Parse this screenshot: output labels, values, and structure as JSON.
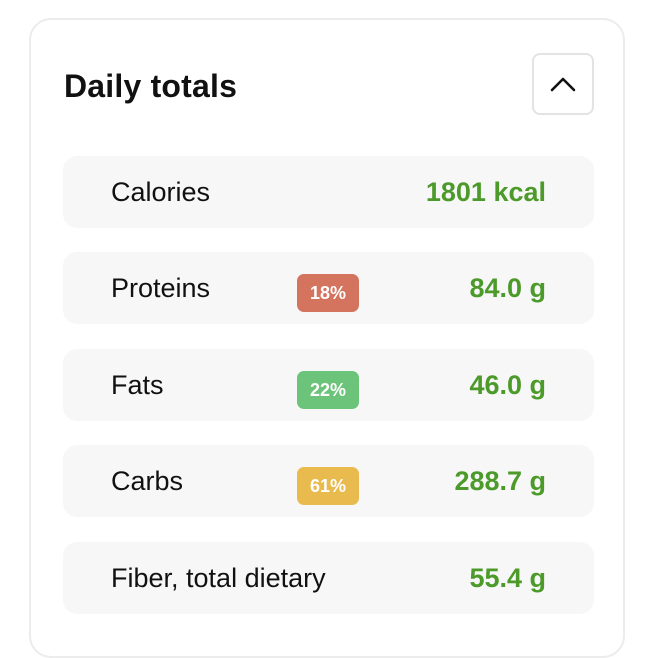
{
  "panel": {
    "title": "Daily totals",
    "collapse_icon": "chevron-up-icon"
  },
  "totals": {
    "calories": {
      "label": "Calories",
      "value": "1801 kcal"
    },
    "proteins": {
      "label": "Proteins",
      "percent": "18%",
      "value": "84.0 g",
      "badge_color": "#d4735e"
    },
    "fats": {
      "label": "Fats",
      "percent": "22%",
      "value": "46.0 g",
      "badge_color": "#6cc37a"
    },
    "carbs": {
      "label": "Carbs",
      "percent": "61%",
      "value": "288.7 g",
      "badge_color": "#e9bb4f"
    },
    "fiber": {
      "label": "Fiber, total dietary",
      "value": "55.4 g"
    }
  },
  "colors": {
    "value_green": "#4c9a2a",
    "row_background": "#f7f7f7"
  }
}
